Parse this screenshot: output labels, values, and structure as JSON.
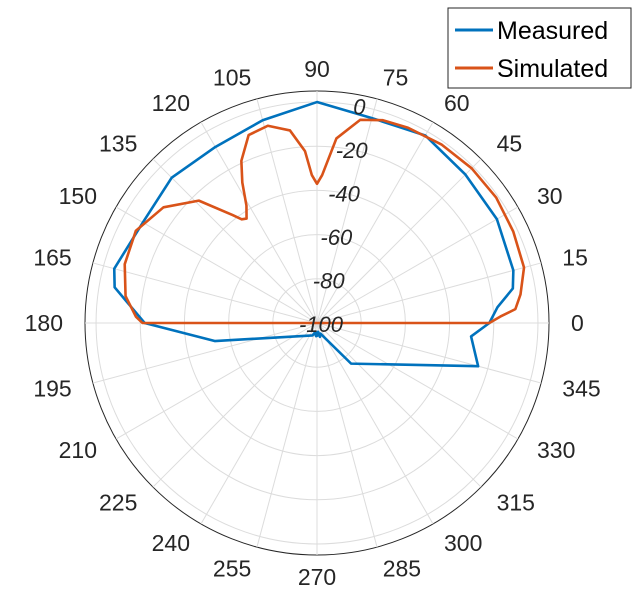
{
  "chart_data": {
    "type": "line",
    "subtype": "polar",
    "angle_unit": "degrees",
    "theta_ticks": [
      0,
      15,
      30,
      45,
      60,
      75,
      90,
      105,
      120,
      135,
      150,
      165,
      180,
      195,
      210,
      225,
      240,
      255,
      270,
      285,
      300,
      315,
      330,
      345
    ],
    "theta_tick_labels": [
      "0",
      "15",
      "30",
      "45",
      "60",
      "75",
      "90",
      "105",
      "120",
      "135",
      "150",
      "165",
      "180",
      "195",
      "210",
      "225",
      "240",
      "255",
      "270",
      "285",
      "300",
      "315",
      "330",
      "345"
    ],
    "r_ticks": [
      0,
      -20,
      -40,
      -60,
      -80,
      -100
    ],
    "r_tick_labels": [
      "0",
      "-20",
      "-40",
      "-60",
      "-80",
      "-100"
    ],
    "r_lim": [
      -100,
      5
    ],
    "r_label_angle": 80,
    "grid": true,
    "legend": {
      "position": "top-right"
    },
    "series": [
      {
        "name": "Measured",
        "color": "#0072BD",
        "theta": [
          0,
          5,
          10,
          15,
          30,
          45,
          60,
          75,
          90,
          105,
          120,
          135,
          150,
          165,
          170,
          180,
          190,
          250,
          257,
          261,
          262,
          266,
          270,
          274,
          277,
          279,
          282,
          287,
          288,
          310,
          345,
          355,
          360
        ],
        "r": [
          -22,
          -18,
          -10,
          -8,
          -6,
          -5,
          -2,
          -4,
          0,
          -5,
          -8,
          -7,
          -9,
          -5,
          -7,
          -22,
          -53,
          -94,
          -95.5,
          -96,
          -94.8,
          -94,
          -94.2,
          -94.8,
          -96,
          -94.5,
          -93.6,
          -95,
          -95,
          -76,
          -24.5,
          -30,
          -22
        ]
      },
      {
        "name": "Simulated",
        "color": "#D95319",
        "theta": [
          0,
          2,
          4,
          8,
          15,
          25,
          35,
          45,
          55,
          65,
          72,
          78,
          84,
          88,
          90,
          92,
          94,
          98,
          104,
          110,
          115,
          118,
          121,
          124,
          126,
          128,
          134,
          143,
          153,
          163,
          172,
          178,
          180,
          270,
          360
        ],
        "r": [
          -22,
          -17,
          -10,
          -7,
          -3,
          -2,
          -1,
          -1,
          -1.5,
          -2.5,
          -3.5,
          -6,
          -16,
          -33,
          -37,
          -33,
          -22,
          -12,
          -8,
          -9.5,
          -19,
          -28,
          -38,
          -43,
          -42,
          -38,
          -23,
          -13,
          -8,
          -9,
          -12.5,
          -18,
          -21,
          -100,
          -22
        ]
      }
    ]
  }
}
